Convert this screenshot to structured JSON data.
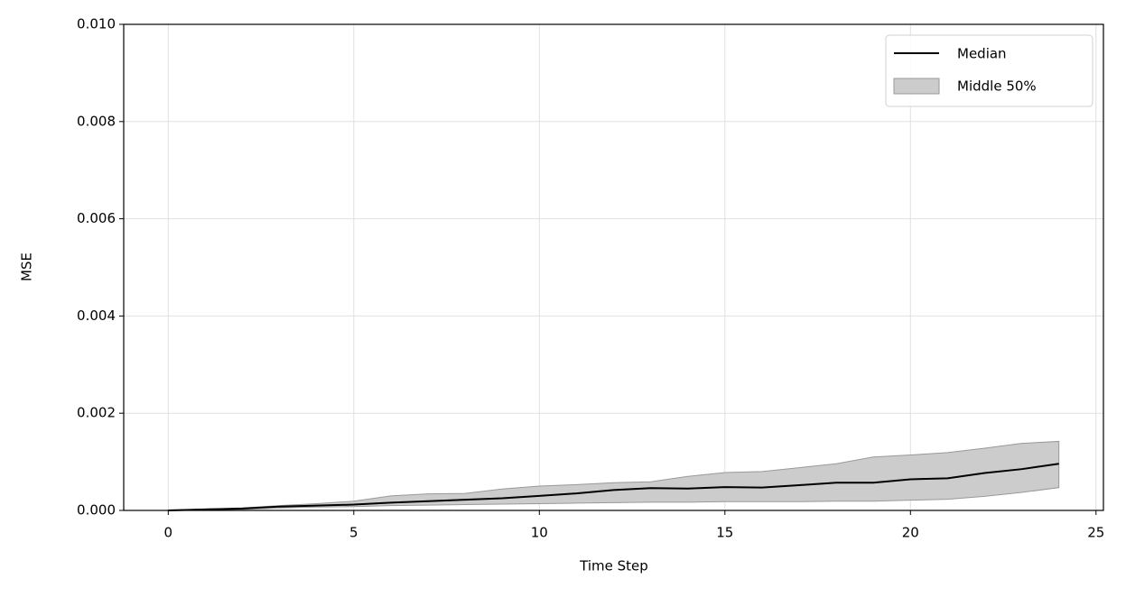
{
  "chart_data": {
    "type": "line",
    "xlabel": "Time Step",
    "ylabel": "MSE",
    "x": [
      0,
      1,
      2,
      3,
      4,
      5,
      6,
      7,
      8,
      9,
      10,
      11,
      12,
      13,
      14,
      15,
      16,
      17,
      18,
      19,
      20,
      21,
      22,
      23,
      24
    ],
    "series": [
      {
        "name": "Median",
        "color": "#000000",
        "values": [
          0,
          2e-05,
          4e-05,
          8e-05,
          0.0001,
          0.00012,
          0.00016,
          0.00019,
          0.00022,
          0.00025,
          0.0003,
          0.00035,
          0.00042,
          0.00046,
          0.00045,
          0.00048,
          0.00047,
          0.00052,
          0.00057,
          0.00057,
          0.00064,
          0.00066,
          0.00077,
          0.00085,
          0.00096
        ]
      }
    ],
    "band": {
      "name": "Middle 50%",
      "color": "#cccccc",
      "edge_color": "#999999",
      "lower": [
        0,
        1e-05,
        2e-05,
        5e-05,
        7e-05,
        8e-05,
        0.0001,
        0.00011,
        0.00012,
        0.00013,
        0.00014,
        0.00015,
        0.00016,
        0.00017,
        0.00017,
        0.00018,
        0.00018,
        0.00018,
        0.00019,
        0.00019,
        0.00021,
        0.00023,
        0.00029,
        0.00037,
        0.00047
      ],
      "upper": [
        0,
        3e-05,
        5e-05,
        0.0001,
        0.00014,
        0.00019,
        0.0003,
        0.00034,
        0.00035,
        0.00044,
        0.0005,
        0.00053,
        0.00057,
        0.00059,
        0.0007,
        0.00078,
        0.0008,
        0.00088,
        0.00096,
        0.0011,
        0.00114,
        0.00119,
        0.00128,
        0.00138,
        0.00142
      ]
    },
    "xlim": [
      -1.2,
      25.2
    ],
    "xticks": [
      0,
      5,
      10,
      15,
      20,
      25
    ],
    "ylim": [
      0,
      0.01
    ],
    "yticks": [
      {
        "value": 0,
        "label": "0.000"
      },
      {
        "value": 0.002,
        "label": "0.002"
      },
      {
        "value": 0.004,
        "label": "0.004"
      },
      {
        "value": 0.006,
        "label": "0.006"
      },
      {
        "value": 0.008,
        "label": "0.008"
      },
      {
        "value": 0.01,
        "label": "0.010"
      }
    ],
    "grid": true,
    "legend": "upper right"
  }
}
